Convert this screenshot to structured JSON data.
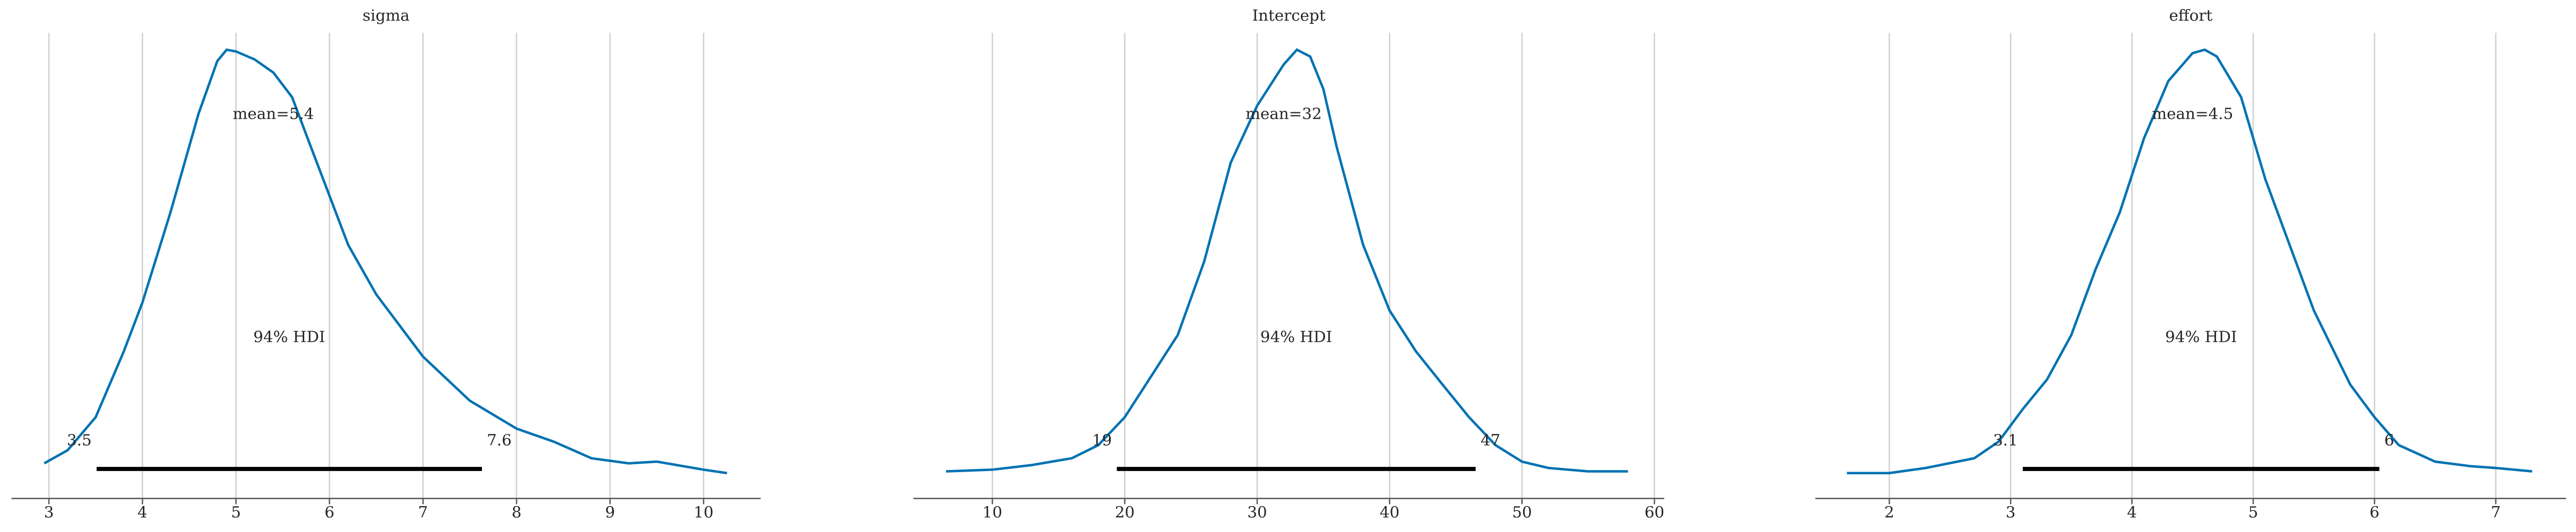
{
  "chart_data": [
    {
      "type": "density",
      "title": "sigma",
      "color": "#0072b2",
      "grid": true,
      "x": [
        2.95,
        3.2,
        3.5,
        3.8,
        4.0,
        4.3,
        4.6,
        4.8,
        4.9,
        5.0,
        5.2,
        5.4,
        5.6,
        5.8,
        6.0,
        6.2,
        6.5,
        7.0,
        7.5,
        8.0,
        8.4,
        8.8,
        9.2,
        9.5,
        10.0,
        10.25
      ],
      "values": [
        0.023,
        0.054,
        0.132,
        0.287,
        0.403,
        0.616,
        0.849,
        0.973,
        1.0,
        0.996,
        0.977,
        0.946,
        0.888,
        0.771,
        0.655,
        0.539,
        0.422,
        0.275,
        0.171,
        0.105,
        0.074,
        0.035,
        0.023,
        0.027,
        0.008,
        0.0
      ],
      "xlim": [
        2.6,
        10.61
      ],
      "ylim": [
        -0.06,
        1.04
      ],
      "xticks": [
        3,
        4,
        5,
        6,
        7,
        8,
        9,
        10
      ],
      "mean_label": {
        "value": 5.4,
        "label": "mean=5.4"
      },
      "hdi_label": "94% HDI",
      "hdi": [
        3.51,
        7.63
      ],
      "hdi_labels": [
        "3.5",
        "7.6"
      ]
    },
    {
      "type": "density",
      "title": "Intercept",
      "color": "#0072b2",
      "grid": true,
      "x": [
        6.5,
        10,
        13,
        16,
        18,
        20,
        22,
        24,
        26,
        28,
        30,
        32,
        33,
        34,
        35,
        36,
        38,
        40,
        42,
        44,
        46,
        48,
        50,
        52,
        55,
        58
      ],
      "values": [
        0.004,
        0.008,
        0.019,
        0.035,
        0.066,
        0.132,
        0.229,
        0.326,
        0.5,
        0.733,
        0.868,
        0.965,
        1.0,
        0.984,
        0.907,
        0.771,
        0.539,
        0.384,
        0.287,
        0.209,
        0.132,
        0.066,
        0.027,
        0.012,
        0.004,
        0.004
      ],
      "xlim": [
        4.04,
        60.74
      ],
      "ylim": [
        -0.06,
        1.04
      ],
      "xticks": [
        10,
        20,
        30,
        40,
        50,
        60
      ],
      "mean_label": {
        "value": 32,
        "label": "mean=32"
      },
      "hdi_label": "94% HDI",
      "hdi": [
        19.4,
        46.5
      ],
      "hdi_labels": [
        "19",
        "47"
      ]
    },
    {
      "type": "density",
      "title": "effort",
      "color": "#0072b2",
      "grid": true,
      "x": [
        1.65,
        2.0,
        2.3,
        2.7,
        2.9,
        3.1,
        3.3,
        3.5,
        3.7,
        3.9,
        4.1,
        4.3,
        4.5,
        4.6,
        4.7,
        4.9,
        5.1,
        5.3,
        5.5,
        5.8,
        6.0,
        6.2,
        6.5,
        6.8,
        7.0,
        7.3
      ],
      "values": [
        0.0,
        0.0,
        0.012,
        0.035,
        0.074,
        0.151,
        0.221,
        0.326,
        0.481,
        0.616,
        0.791,
        0.926,
        0.992,
        1.0,
        0.984,
        0.888,
        0.694,
        0.539,
        0.384,
        0.209,
        0.132,
        0.066,
        0.027,
        0.016,
        0.012,
        0.004
      ],
      "xlim": [
        1.39,
        7.58
      ],
      "ylim": [
        -0.06,
        1.04
      ],
      "xticks": [
        2,
        3,
        4,
        5,
        6,
        7
      ],
      "mean_label": {
        "value": 4.5,
        "label": "mean=4.5"
      },
      "hdi_label": "94% HDI",
      "hdi": [
        3.1,
        6.04
      ],
      "hdi_labels": [
        "3.1",
        "6"
      ]
    }
  ]
}
